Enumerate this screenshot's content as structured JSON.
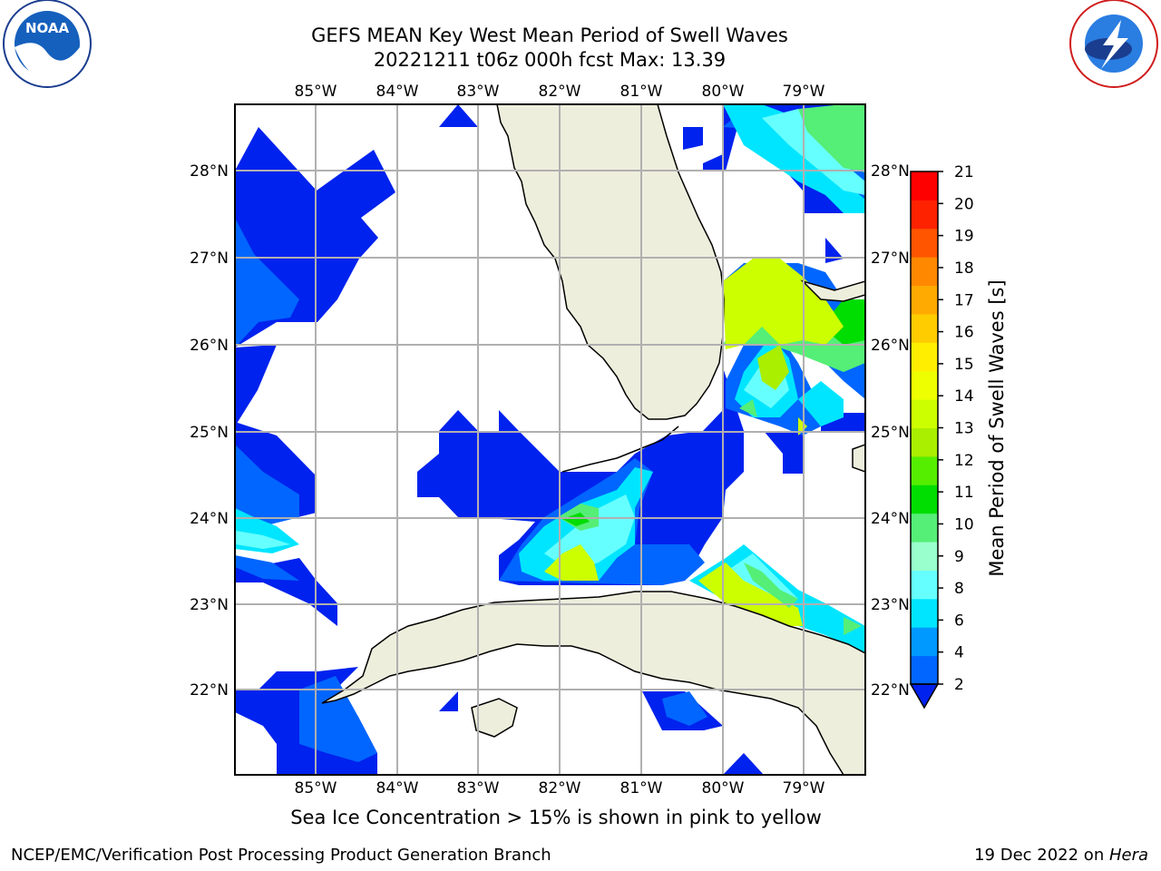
{
  "title": {
    "line1": "GEFS MEAN Key West Mean Period of Swell Waves",
    "line2": "20221211 t06z 000h fcst   Max: 13.39"
  },
  "logos": {
    "left": "NOAA",
    "right": "NATIONAL WEATHER SERVICE"
  },
  "map": {
    "lon_labels": [
      "85°W",
      "84°W",
      "83°W",
      "82°W",
      "81°W",
      "80°W",
      "79°W"
    ],
    "lat_labels": [
      "28°N",
      "27°N",
      "26°N",
      "25°N",
      "24°N",
      "23°N",
      "22°N"
    ],
    "land_color": "#eeeedd",
    "grid_color": "#b0b0b0"
  },
  "colorbar": {
    "label": "Mean Period of Swell Waves [s]",
    "ticks": [
      "21",
      "20",
      "19",
      "18",
      "17",
      "16",
      "15",
      "14",
      "13",
      "12",
      "11",
      "10",
      "9",
      "8",
      "6",
      "4",
      "2"
    ],
    "colors": [
      "#0066ff",
      "#0099ff",
      "#00e5ff",
      "#66ffff",
      "#99ffcc",
      "#55ee77",
      "#00dd00",
      "#55ee00",
      "#aaee00",
      "#ccff00",
      "#eeff00",
      "#ffee00",
      "#ffcc00",
      "#ffaa00",
      "#ff8800",
      "#ff5500",
      "#ff2200",
      "#ff0000"
    ],
    "extend_color": "#0022ee"
  },
  "notes": {
    "sea_ice": "Sea Ice Concentration > 15% is shown in pink to yellow"
  },
  "footer": {
    "left": "NCEP/EMC/Verification Post Processing Product Generation Branch",
    "right_date": "19 Dec 2022 on ",
    "right_host": "Hera"
  }
}
